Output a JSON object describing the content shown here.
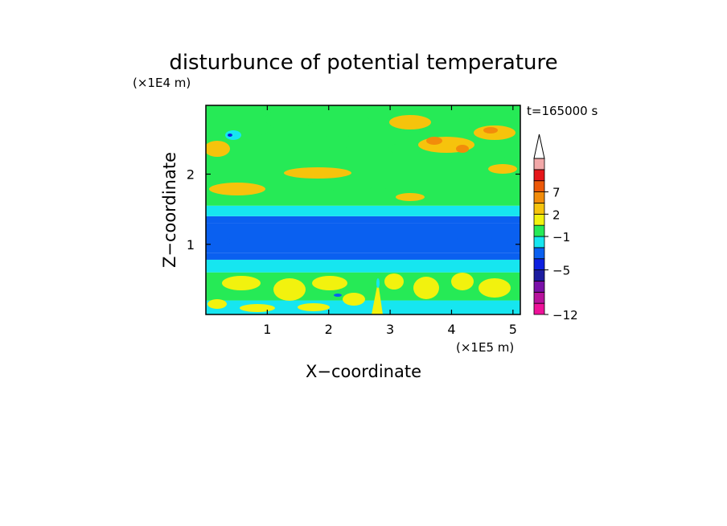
{
  "chart_data": {
    "type": "heatmap",
    "title": "disturbunce of potential temperature",
    "xlabel": "X−coordinate",
    "ylabel": "Z−coordinate",
    "x_unit": "(×1E5 m)",
    "y_unit": "(×1E4 m)",
    "time_label": "t=165000 s",
    "xlim": [
      0,
      5.12
    ],
    "ylim": [
      0,
      2.98
    ],
    "x_ticks": [
      1,
      2,
      3,
      4,
      5
    ],
    "y_ticks": [
      1,
      2
    ],
    "colorbar": {
      "levels": [
        -12,
        -5,
        -1,
        2,
        7
      ],
      "level_labels": [
        "−12",
        "−5",
        "−1",
        "2",
        "7"
      ],
      "colors": [
        "#ee1199",
        "#b8129c",
        "#7a10a8",
        "#1c1ca0",
        "#0d20e0",
        "#0a60f0",
        "#16e6f0",
        "#26ea56",
        "#f2f20e",
        "#f6c30c",
        "#f28c0a",
        "#ec5808",
        "#e6161a",
        "#f2a8a8"
      ],
      "extend": "max"
    },
    "z_bands": [
      {
        "z": [
          0.0,
          0.2
        ],
        "value": -0.5
      },
      {
        "z": [
          0.2,
          0.6
        ],
        "value": 0.3
      },
      {
        "z": [
          0.6,
          0.78
        ],
        "value": -0.5
      },
      {
        "z": [
          0.78,
          0.88
        ],
        "value": -1.5
      },
      {
        "z": [
          0.88,
          1.3
        ],
        "value": -3.5
      },
      {
        "z": [
          1.3,
          1.4
        ],
        "value": -1.5
      },
      {
        "z": [
          1.4,
          1.55
        ],
        "value": -0.5
      },
      {
        "z": [
          1.55,
          2.98
        ],
        "value": 0.3
      }
    ]
  }
}
